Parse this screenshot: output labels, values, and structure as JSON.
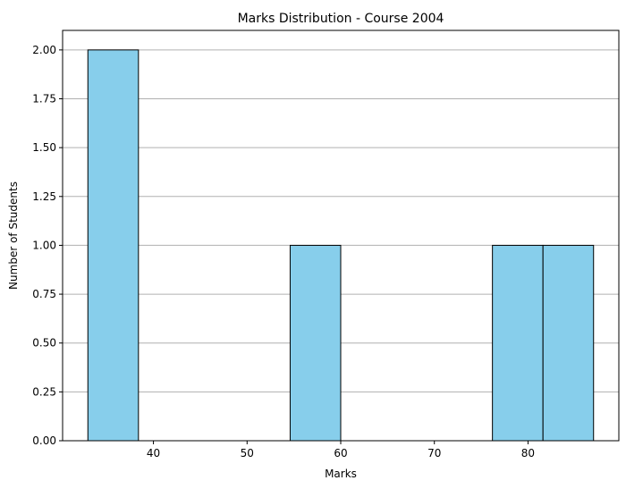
{
  "chart_data": {
    "type": "bar",
    "title": "Marks Distribution - Course 2004",
    "xlabel": "Marks",
    "ylabel": "Number of Students",
    "bins": [
      {
        "start": 33.0,
        "end": 38.4,
        "count": 2
      },
      {
        "start": 38.4,
        "end": 43.8,
        "count": 0
      },
      {
        "start": 43.8,
        "end": 49.2,
        "count": 0
      },
      {
        "start": 49.2,
        "end": 54.6,
        "count": 0
      },
      {
        "start": 54.6,
        "end": 60.0,
        "count": 1
      },
      {
        "start": 60.0,
        "end": 65.4,
        "count": 0
      },
      {
        "start": 65.4,
        "end": 70.8,
        "count": 0
      },
      {
        "start": 70.8,
        "end": 76.2,
        "count": 0
      },
      {
        "start": 76.2,
        "end": 81.6,
        "count": 1
      },
      {
        "start": 81.6,
        "end": 87.0,
        "count": 1
      }
    ],
    "xlim": [
      30.3,
      89.7
    ],
    "ylim": [
      0,
      2.1
    ],
    "xticks": [
      40,
      50,
      60,
      70,
      80
    ],
    "yticks": [
      0.0,
      0.25,
      0.5,
      0.75,
      1.0,
      1.25,
      1.5,
      1.75,
      2.0
    ],
    "ytick_labels": [
      "0.00",
      "0.25",
      "0.50",
      "0.75",
      "1.00",
      "1.25",
      "1.50",
      "1.75",
      "2.00"
    ],
    "grid": "y-axis",
    "bar_color": "#87CEEB",
    "edge_color": "#000000",
    "grid_color": "#b0b0b0"
  }
}
